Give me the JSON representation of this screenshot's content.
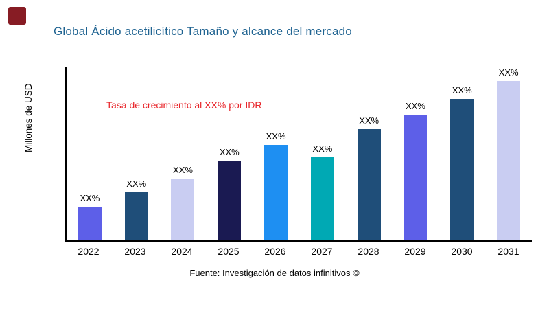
{
  "header": {
    "title": "Global Ácido acetilicítico Tamaño y alcance del mercado"
  },
  "annotation": {
    "text": "Tasa de crecimiento al XX% por IDR",
    "color": "#e8252a"
  },
  "footer": {
    "source": "Fuente: Investigación de datos infinitivos ©"
  },
  "colors": {
    "title": "#1f6391",
    "logo": "#871c24",
    "axis": "#000000"
  },
  "chart_data": {
    "type": "bar",
    "title": "Global Ácido acetilicítico Tamaño y alcance del mercado",
    "xlabel": "",
    "ylabel": "Millones de USD",
    "categories": [
      "2022",
      "2023",
      "2024",
      "2025",
      "2026",
      "2027",
      "2028",
      "2029",
      "2030",
      "2031"
    ],
    "values": [
      21,
      30,
      39,
      50,
      60,
      52,
      70,
      79,
      89,
      100
    ],
    "ylim": [
      0,
      100
    ],
    "bar_labels": [
      "XX%",
      "XX%",
      "XX%",
      "XX%",
      "XX%",
      "XX%",
      "XX%",
      "XX%",
      "XX%",
      "XX%"
    ],
    "bar_colors": [
      "#5d5fe8",
      "#1f4e79",
      "#c9cdf2",
      "#1a1a52",
      "#1e8ff2",
      "#00a9b4",
      "#1f4e79",
      "#5d5fe8",
      "#1f4e79",
      "#c9cdf2"
    ],
    "grid": false,
    "legend": "none",
    "annotation": "Tasa de crecimiento al XX% por IDR"
  }
}
